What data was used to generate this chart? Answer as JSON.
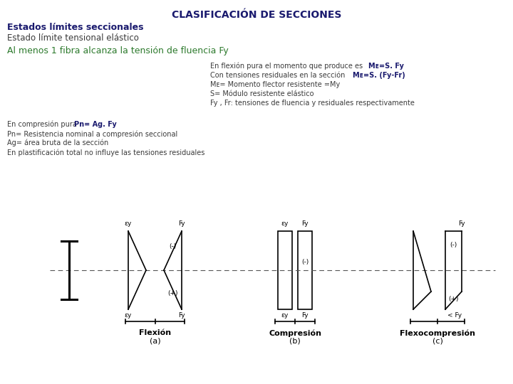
{
  "title": "CLASIFICACIÓN DE SECCIONES",
  "title_color": "#1a1a6e",
  "title_fontsize": 10,
  "subtitle1": "Estados límites seccionales",
  "subtitle1_color": "#1a1a6e",
  "subtitle1_fontsize": 9,
  "subtitle2": "Estado límite tensional elástico",
  "subtitle2_color": "#3a3a3a",
  "subtitle2_fontsize": 8.5,
  "green_text": "Al menos 1 fibra alcanza la tensión de fluencia Fy",
  "green_color": "#2d7a2d",
  "green_fontsize": 9,
  "comp_line1_normal": "En compresión pura   ",
  "comp_line1_bold": "Pn= Ag. Fy",
  "comp_line2": "Pn= Resistencia nominal a compresión seccional",
  "comp_line3": "Ag= área bruta de la sección",
  "comp_line4": "En plastificación total no influye las tensiones residuales",
  "comp_color": "#3a3a3a",
  "comp_bold_color": "#1a1a6e",
  "background_color": "#ffffff"
}
